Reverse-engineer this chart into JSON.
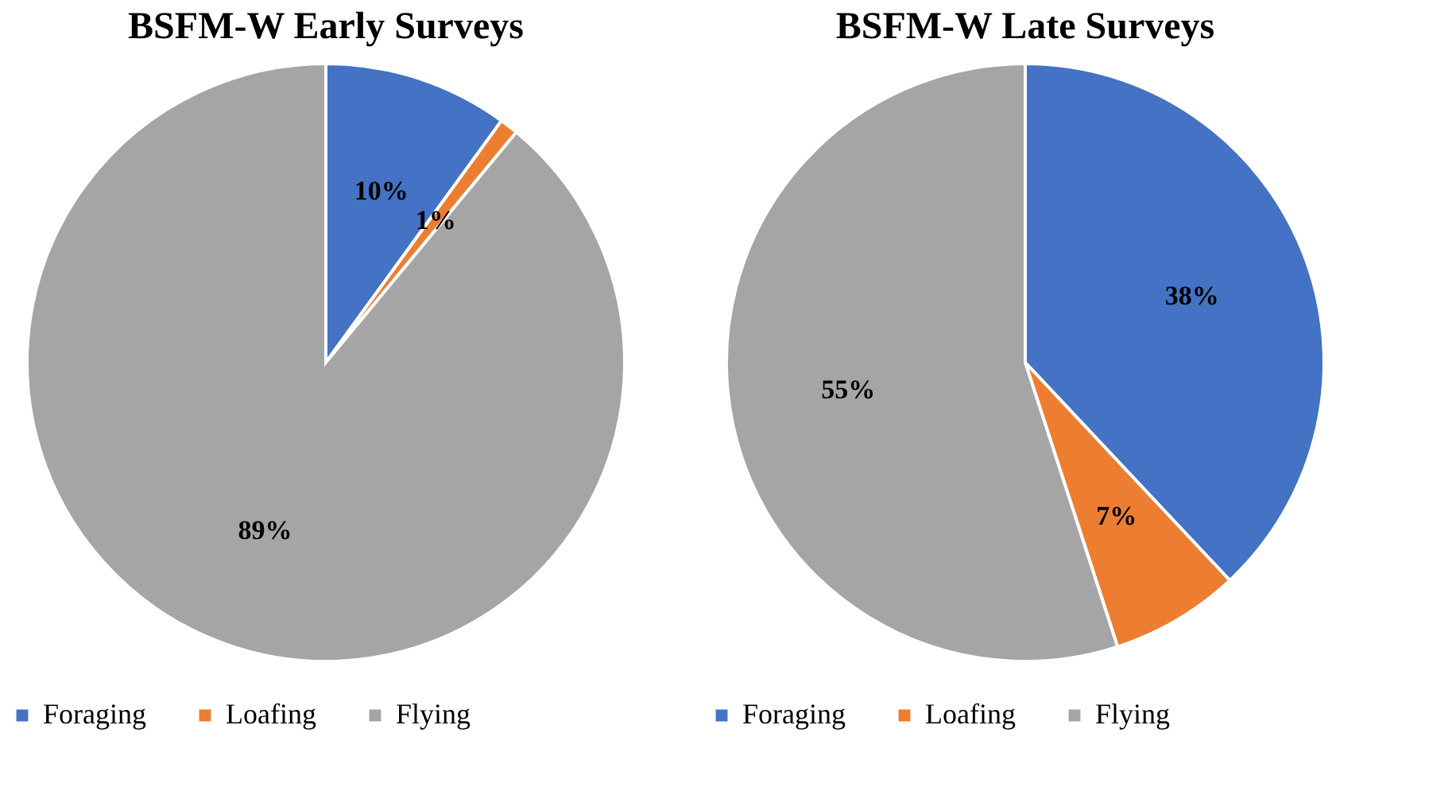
{
  "chart_data": [
    {
      "type": "pie",
      "title": "BSFM-W Early Surveys",
      "categories": [
        "Foraging",
        "Loafing",
        "Flying"
      ],
      "values": [
        10,
        1,
        89
      ],
      "colors": [
        "#4472c4",
        "#ed7d31",
        "#a5a5a5"
      ],
      "value_labels": [
        "10%",
        "1%",
        "89%"
      ],
      "legend": "bottom"
    },
    {
      "type": "pie",
      "title": "BSFM-W Late Surveys",
      "categories": [
        "Foraging",
        "Loafing",
        "Flying"
      ],
      "values": [
        38,
        7,
        55
      ],
      "colors": [
        "#4472c4",
        "#ed7d31",
        "#a5a5a5"
      ],
      "value_labels": [
        "38%",
        "7%",
        "55%"
      ],
      "legend": "bottom"
    }
  ]
}
